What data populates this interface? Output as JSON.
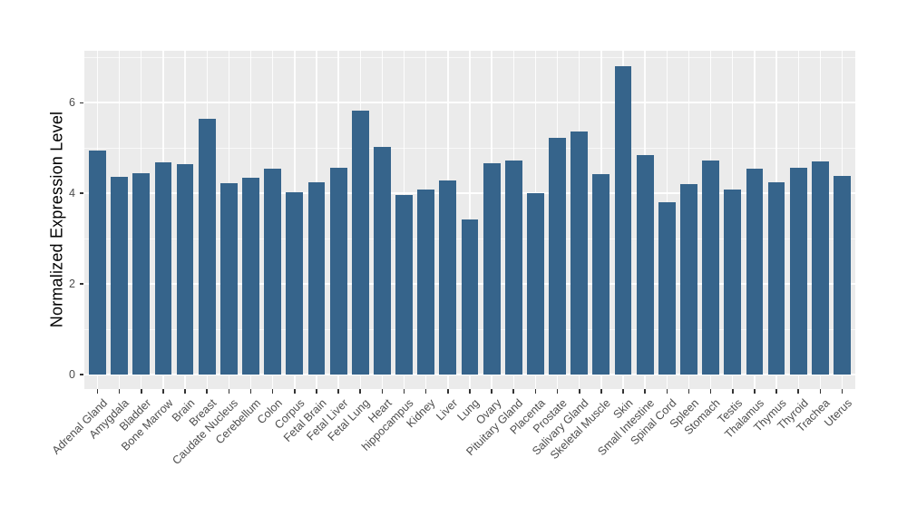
{
  "chart_data": {
    "type": "bar",
    "title": "",
    "xlabel": "",
    "ylabel": "Normalized Expression Level",
    "categories": [
      "Adrenal Gland",
      "Amygdala",
      "Bladder",
      "Bone Marrow",
      "Brain",
      "Breast",
      "Caudate Nucleus",
      "Cerebellum",
      "Colon",
      "Corpus",
      "Fetal Brain",
      "Fetal Liver",
      "Fetal Lung",
      "Heart",
      "hippocampus",
      "Kidney",
      "Liver",
      "Lung",
      "Ovary",
      "Pituitary Gland",
      "Placenta",
      "Prostate",
      "Salivary Gland",
      "Skeletal Muscle",
      "Skin",
      "Small Intestine",
      "Spinal Cord",
      "Spleen",
      "Stomach",
      "Testis",
      "Thalamus",
      "Thymus",
      "Thyroid",
      "Trachea",
      "Uterus"
    ],
    "values": [
      4.94,
      4.36,
      4.44,
      4.69,
      4.65,
      5.65,
      4.22,
      4.34,
      4.55,
      4.03,
      4.25,
      4.57,
      5.83,
      5.02,
      3.97,
      4.08,
      4.29,
      3.43,
      4.66,
      4.73,
      4.0,
      5.23,
      5.36,
      4.43,
      6.8,
      4.85,
      3.8,
      4.2,
      4.72,
      4.08,
      4.55,
      4.25,
      4.56,
      4.7,
      4.38
    ],
    "y_ticks": [
      0,
      2,
      4,
      6
    ],
    "y_minor_ticks": [
      1,
      3,
      5,
      7
    ],
    "ylim": [
      -0.32,
      7.15
    ],
    "grid": true,
    "legend": false,
    "x_label_rotation_deg": 45,
    "bar_width_ratio": 0.78,
    "colors": {
      "bar": "#36648B",
      "panel_bg": "#EBEBEB",
      "grid": "#FFFFFF",
      "axis_text": "#4D4D4D",
      "axis_title": "#000000",
      "tick_mark": "#333333",
      "background": "#FFFFFF"
    }
  }
}
